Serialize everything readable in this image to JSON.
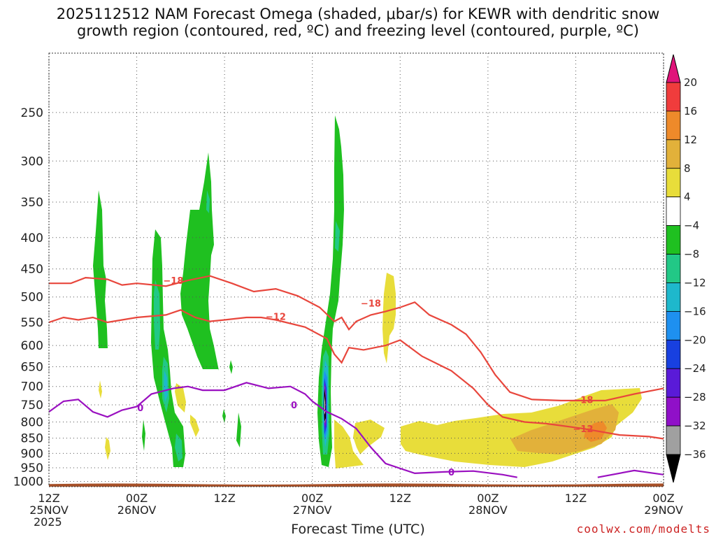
{
  "title_line1": "2025112512 NAM Forecast Omega (shaded, μbar/s) for KEWR with dendritic snow",
  "title_line2": "growth region (contoured, red, ºC) and freezing level (contoured, purple, ºC)",
  "xaxis_title": "Forecast Time (UTC)",
  "credit": "coolwx.com/modelts",
  "colors": {
    "dgz_contour": "#e8463c",
    "freezing_contour": "#9a10c0",
    "terrain": "#a8522a",
    "grid": "#555555"
  },
  "chart_data": {
    "type": "heatmap",
    "title": "2025112512 NAM Forecast Omega (shaded, μbar/s) for KEWR with dendritic snow growth region (contoured, red, ºC) and freezing level (contoured, purple, ºC)",
    "xlabel": "Forecast Time (UTC)",
    "ylabel": "",
    "y_scale": "log-pressure (inverted)",
    "ylim": [
      1020,
      200
    ],
    "xlim_hours": [
      0,
      84
    ],
    "grid": true,
    "y_ticks": [
      250,
      300,
      350,
      400,
      450,
      500,
      550,
      600,
      650,
      700,
      750,
      800,
      850,
      900,
      950,
      1000
    ],
    "x_ticks": [
      {
        "hour": 0,
        "line1": "12Z",
        "line2": "25NOV",
        "line3": "2025"
      },
      {
        "hour": 12,
        "line1": "00Z",
        "line2": "26NOV",
        "line3": ""
      },
      {
        "hour": 24,
        "line1": "12Z",
        "line2": "",
        "line3": ""
      },
      {
        "hour": 36,
        "line1": "00Z",
        "line2": "27NOV",
        "line3": ""
      },
      {
        "hour": 48,
        "line1": "12Z",
        "line2": "",
        "line3": ""
      },
      {
        "hour": 60,
        "line1": "00Z",
        "line2": "28NOV",
        "line3": ""
      },
      {
        "hour": 72,
        "line1": "12Z",
        "line2": "",
        "line3": ""
      },
      {
        "hour": 84,
        "line1": "00Z",
        "line2": "29NOV",
        "line3": ""
      }
    ],
    "colorbar": {
      "labels": [
        "20",
        "16",
        "12",
        "8",
        "4",
        "−4",
        "−8",
        "−12",
        "−16",
        "−20",
        "−24",
        "−28",
        "−32",
        "−36"
      ],
      "bands": [
        {
          "lo": 16,
          "hi": 20,
          "color": "#f03c3c"
        },
        {
          "lo": 12,
          "hi": 16,
          "color": "#ee8a2a"
        },
        {
          "lo": 8,
          "hi": 12,
          "color": "#e2b13a"
        },
        {
          "lo": 4,
          "hi": 8,
          "color": "#e8dd3a"
        },
        {
          "lo": -4,
          "hi": 4,
          "color": "#ffffff"
        },
        {
          "lo": -8,
          "hi": -4,
          "color": "#1fc020"
        },
        {
          "lo": -12,
          "hi": -8,
          "color": "#22c886"
        },
        {
          "lo": -16,
          "hi": -12,
          "color": "#1eb8cc"
        },
        {
          "lo": -20,
          "hi": -16,
          "color": "#1e90f0"
        },
        {
          "lo": -24,
          "hi": -20,
          "color": "#1840e0"
        },
        {
          "lo": -28,
          "hi": -24,
          "color": "#5a1ad8"
        },
        {
          "lo": -32,
          "hi": -28,
          "color": "#9010c8"
        },
        {
          "lo": -36,
          "hi": -32,
          "color": "#a0a0a0"
        }
      ],
      "over_color": "#e0147a",
      "under_color": "#000000"
    },
    "contours": [
      {
        "name": "-18",
        "color": "#e8463c",
        "label_positions": [
          {
            "hour": 17,
            "p": 470,
            "text": "−18"
          },
          {
            "hour": 44,
            "p": 512,
            "text": "−18"
          },
          {
            "hour": 73,
            "p": 735,
            "text": "−18"
          }
        ],
        "points": [
          [
            0,
            475
          ],
          [
            3,
            475
          ],
          [
            5,
            465
          ],
          [
            8,
            468
          ],
          [
            10,
            478
          ],
          [
            12,
            475
          ],
          [
            16,
            480
          ],
          [
            19,
            470
          ],
          [
            22,
            462
          ],
          [
            25,
            475
          ],
          [
            28,
            490
          ],
          [
            31,
            485
          ],
          [
            34,
            498
          ],
          [
            37,
            520
          ],
          [
            39,
            548
          ],
          [
            40,
            540
          ],
          [
            41,
            565
          ],
          [
            42,
            548
          ],
          [
            44,
            535
          ],
          [
            46,
            528
          ],
          [
            48,
            520
          ],
          [
            50,
            510
          ],
          [
            52,
            535
          ],
          [
            55,
            555
          ],
          [
            57,
            575
          ],
          [
            59,
            615
          ],
          [
            61,
            670
          ],
          [
            63,
            715
          ],
          [
            66,
            735
          ],
          [
            70,
            738
          ],
          [
            76,
            738
          ],
          [
            80,
            720
          ],
          [
            84,
            705
          ]
        ]
      },
      {
        "name": "-12",
        "color": "#e8463c",
        "label_positions": [
          {
            "hour": 31,
            "p": 538,
            "text": "−12"
          },
          {
            "hour": 73,
            "p": 820,
            "text": "−12"
          }
        ],
        "points": [
          [
            0,
            550
          ],
          [
            2,
            540
          ],
          [
            4,
            545
          ],
          [
            6,
            540
          ],
          [
            8,
            550
          ],
          [
            10,
            545
          ],
          [
            12,
            540
          ],
          [
            16,
            535
          ],
          [
            18,
            525
          ],
          [
            20,
            540
          ],
          [
            22,
            548
          ],
          [
            24,
            545
          ],
          [
            27,
            540
          ],
          [
            29,
            540
          ],
          [
            31,
            545
          ],
          [
            35,
            560
          ],
          [
            38,
            585
          ],
          [
            39,
            620
          ],
          [
            40,
            640
          ],
          [
            41,
            605
          ],
          [
            43,
            610
          ],
          [
            46,
            600
          ],
          [
            48,
            588
          ],
          [
            49,
            600
          ],
          [
            51,
            625
          ],
          [
            55,
            660
          ],
          [
            58,
            705
          ],
          [
            60,
            750
          ],
          [
            62,
            785
          ],
          [
            65,
            800
          ],
          [
            68,
            805
          ],
          [
            73,
            820
          ],
          [
            78,
            840
          ],
          [
            82,
            845
          ],
          [
            84,
            852
          ]
        ]
      },
      {
        "name": "0",
        "color": "#9a10c0",
        "label_positions": [
          {
            "hour": 12.5,
            "p": 758,
            "text": "0"
          },
          {
            "hour": 33.5,
            "p": 750,
            "text": "0"
          },
          {
            "hour": 55,
            "p": 965,
            "text": "0"
          }
        ],
        "points": [
          [
            0,
            770
          ],
          [
            2,
            740
          ],
          [
            4,
            735
          ],
          [
            6,
            770
          ],
          [
            8,
            785
          ],
          [
            10,
            765
          ],
          [
            12,
            755
          ],
          [
            14,
            720
          ],
          [
            17,
            705
          ],
          [
            19,
            700
          ],
          [
            21,
            710
          ],
          [
            24,
            710
          ],
          [
            27,
            690
          ],
          [
            30,
            705
          ],
          [
            33,
            700
          ],
          [
            35,
            720
          ],
          [
            36,
            740
          ],
          [
            38,
            770
          ],
          [
            40,
            790
          ],
          [
            42,
            820
          ],
          [
            44,
            880
          ],
          [
            46,
            935
          ],
          [
            50,
            970
          ],
          [
            54,
            965
          ],
          [
            58,
            962
          ],
          [
            62,
            975
          ],
          [
            64,
            985
          ]
        ]
      },
      {
        "name": "0b",
        "color": "#9a10c0",
        "label_positions": [],
        "points": [
          [
            75,
            985
          ],
          [
            80,
            960
          ],
          [
            84,
            975
          ]
        ]
      }
    ]
  }
}
